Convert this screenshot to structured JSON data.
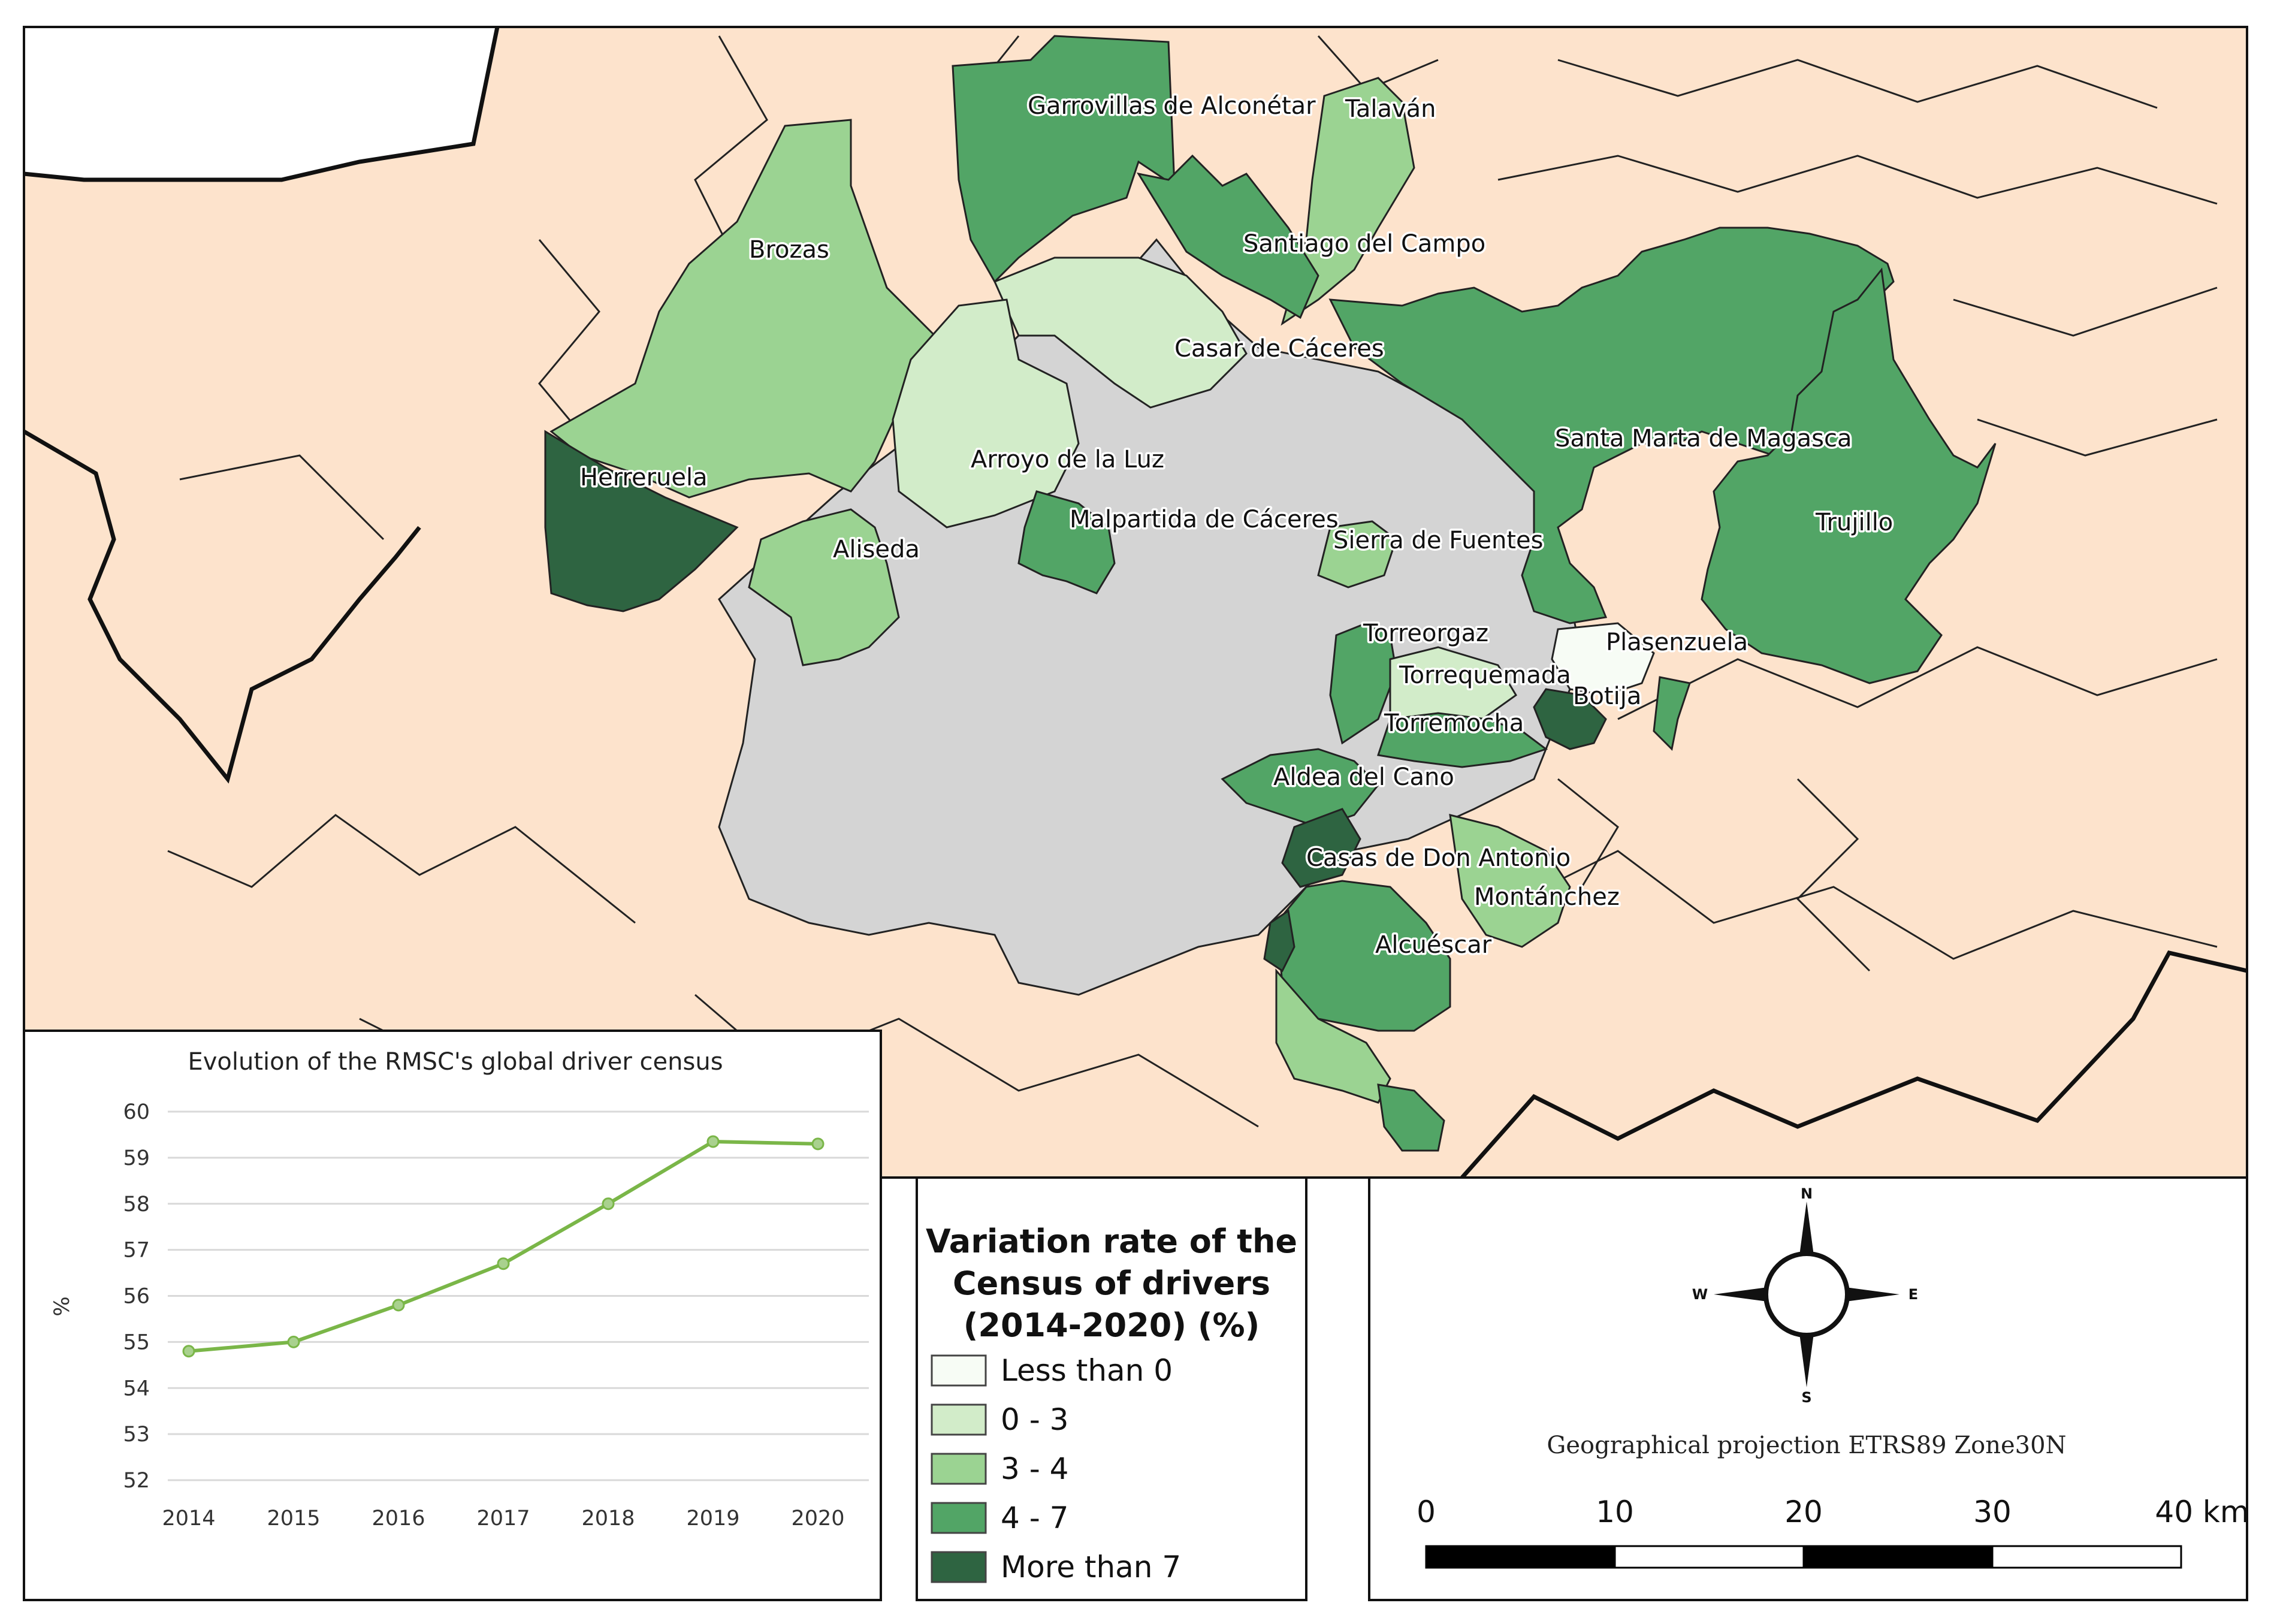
{
  "map": {
    "municipality_labels": [
      "Garrovillas de Alconétar",
      "Talaván",
      "Brozas",
      "Santiago del Campo",
      "Casar de Cáceres",
      "Santa Marta de Magasca",
      "Herreruela",
      "Arroyo de la Luz",
      "Malpartida de Cáceres",
      "Trujillo",
      "Aliseda",
      "Sierra de Fuentes",
      "Torreorgaz",
      "Plasenzuela",
      "Torrequemada",
      "Botija",
      "Torremocha",
      "Aldea del Cano",
      "Casas de Don Antonio",
      "Montánchez",
      "Alcuéscar"
    ],
    "colors": {
      "background_land": "#fde3cc",
      "sea_or_outside": "#ffffff",
      "rmsc_core": "#d4d4d4",
      "boundary": "#111111"
    }
  },
  "legend": {
    "title_lines": [
      "Variation rate of the",
      "Census of drivers",
      "(2014-2020) (%)"
    ],
    "classes": [
      {
        "label": "Less than 0",
        "color": "#f7fcf5"
      },
      {
        "label": "0 - 3",
        "color": "#d2ecc9"
      },
      {
        "label": "3 - 4",
        "color": "#9bd392"
      },
      {
        "label": "4 - 7",
        "color": "#52a566"
      },
      {
        "label": "More than 7",
        "color": "#2e6441"
      }
    ]
  },
  "compass": {
    "n": "N",
    "s": "S",
    "e": "E",
    "w": "W"
  },
  "projection_text": "Geographical projection ETRS89 Zone30N",
  "scale_bar": {
    "labels": [
      "0",
      "10",
      "20",
      "30",
      "40 km"
    ]
  },
  "chart_data": {
    "type": "line",
    "title": "Evolution of the RMSC's global driver census",
    "xlabel": "",
    "ylabel": "%",
    "x": [
      "2014",
      "2015",
      "2016",
      "2017",
      "2018",
      "2019",
      "2020"
    ],
    "series": [
      {
        "values": [
          54.8,
          55.0,
          55.8,
          56.7,
          58.0,
          59.35,
          59.3
        ],
        "color": "#7ab648"
      }
    ],
    "ylim": [
      52,
      60
    ],
    "yticks": [
      "52",
      "53",
      "54",
      "55",
      "56",
      "57",
      "58",
      "59",
      "60"
    ],
    "grid": true
  }
}
